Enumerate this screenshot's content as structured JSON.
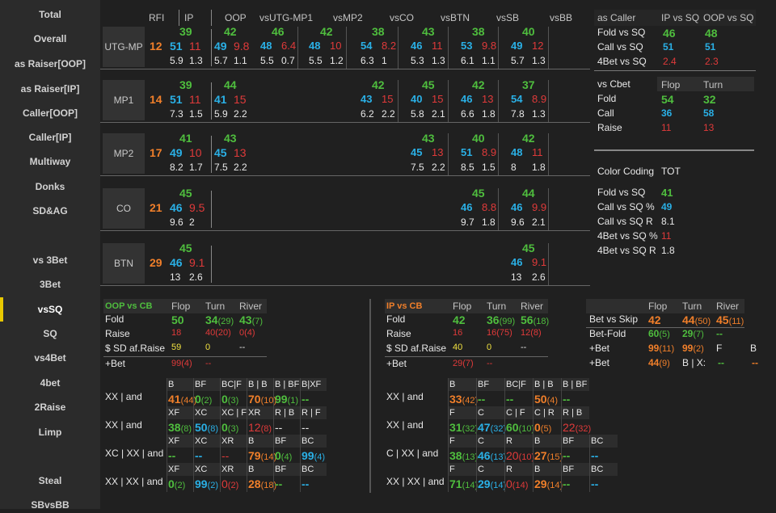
{
  "sidebar": {
    "items": [
      "Total",
      "Overall",
      "as Raiser[OOP]",
      "as Raiser[IP]",
      "Caller[OOP]",
      "Caller[IP]",
      "Multiway",
      "Donks",
      "SD&AG",
      "vs 3Bet",
      "3Bet",
      "vsSQ",
      "SQ",
      "vs4Bet",
      "4bet",
      "2Raise",
      "Limp",
      "Steal",
      "SBvsBB"
    ],
    "active": "vsSQ"
  },
  "grid": {
    "headers": [
      "RFI",
      "IP",
      "OOP",
      "vsUTG-MP1",
      "vsMP2",
      "vsCO",
      "vsBTN",
      "vsSB",
      "vsBB"
    ],
    "rows": [
      {
        "pos": "UTG-MP",
        "rfi": "12",
        "ip": {
          "f": "39",
          "c": "51",
          "b": "11",
          "s1": "5.9",
          "s2": "1.3"
        },
        "oop": {
          "f": "42",
          "c": "49",
          "b": "9.8",
          "s1": "5.7",
          "s2": "1.1"
        },
        "cells": [
          {
            "f": "46",
            "c": "48",
            "b": "6.4",
            "s1": "5.5",
            "s2": "0.7"
          },
          {
            "f": "42",
            "c": "48",
            "b": "10",
            "s1": "5.5",
            "s2": "1.2"
          },
          {
            "f": "38",
            "c": "54",
            "b": "8.2",
            "s1": "6.3",
            "s2": "1"
          },
          {
            "f": "43",
            "c": "46",
            "b": "11",
            "s1": "5.3",
            "s2": "1.3"
          },
          {
            "f": "38",
            "c": "53",
            "b": "9.8",
            "s1": "6.1",
            "s2": "1.1"
          },
          {
            "f": "40",
            "c": "49",
            "b": "12",
            "s1": "5.7",
            "s2": "1.3"
          }
        ]
      },
      {
        "pos": "MP1",
        "rfi": "14",
        "ip": {
          "f": "39",
          "c": "51",
          "b": "11",
          "s1": "7.3",
          "s2": "1.5"
        },
        "oop": {
          "f": "44",
          "c": "41",
          "b": "15",
          "s1": "5.9",
          "s2": "2.2"
        },
        "cells": [
          null,
          null,
          {
            "f": "42",
            "c": "43",
            "b": "15",
            "s1": "6.2",
            "s2": "2.2"
          },
          {
            "f": "45",
            "c": "40",
            "b": "15",
            "s1": "5.8",
            "s2": "2.1"
          },
          {
            "f": "42",
            "c": "46",
            "b": "13",
            "s1": "6.6",
            "s2": "1.8"
          },
          {
            "f": "37",
            "c": "54",
            "b": "8.9",
            "s1": "7.8",
            "s2": "1.3"
          }
        ]
      },
      {
        "pos": "MP2",
        "rfi": "17",
        "ip": {
          "f": "41",
          "c": "49",
          "b": "10",
          "s1": "8.2",
          "s2": "1.7"
        },
        "oop": {
          "f": "43",
          "c": "45",
          "b": "13",
          "s1": "7.5",
          "s2": "2.2"
        },
        "cells": [
          null,
          null,
          null,
          {
            "f": "43",
            "c": "45",
            "b": "13",
            "s1": "7.5",
            "s2": "2.2"
          },
          {
            "f": "40",
            "c": "51",
            "b": "8.9",
            "s1": "8.5",
            "s2": "1.5"
          },
          {
            "f": "42",
            "c": "48",
            "b": "11",
            "s1": "8",
            "s2": "1.8"
          }
        ]
      },
      {
        "pos": "CO",
        "rfi": "21",
        "ip": {
          "f": "45",
          "c": "46",
          "b": "9.5",
          "s1": "9.6",
          "s2": "2"
        },
        "oop": null,
        "cells": [
          null,
          null,
          null,
          null,
          {
            "f": "45",
            "c": "46",
            "b": "8.8",
            "s1": "9.7",
            "s2": "1.8"
          },
          {
            "f": "44",
            "c": "46",
            "b": "9.9",
            "s1": "9.6",
            "s2": "2.1"
          }
        ]
      },
      {
        "pos": "BTN",
        "rfi": "29",
        "ip": {
          "f": "45",
          "c": "46",
          "b": "9.1",
          "s1": "13",
          "s2": "2.6"
        },
        "oop": null,
        "cells": [
          null,
          null,
          null,
          null,
          null,
          {
            "f": "45",
            "c": "46",
            "b": "9.1",
            "s1": "13",
            "s2": "2.6"
          }
        ]
      }
    ]
  },
  "as_caller": {
    "title": "as Caller",
    "h1": "IP vs SQ",
    "h2": "OOP vs SQ",
    "rows": [
      {
        "label": "Fold vs SQ",
        "v1": "46",
        "v2": "48",
        "color": "g"
      },
      {
        "label": "Call vs SQ",
        "v1": "51",
        "v2": "51",
        "color": "b"
      },
      {
        "label": "4Bet vs SQ",
        "v1": "2.4",
        "v2": "2.3",
        "color": "r"
      }
    ]
  },
  "vs_cbet": {
    "title": "vs Cbet",
    "h1": "Flop",
    "h2": "Turn",
    "rows": [
      {
        "label": "Fold",
        "v1": "54",
        "v2": "32",
        "color": "g"
      },
      {
        "label": "Call",
        "v1": "36",
        "v2": "58",
        "color": "b"
      },
      {
        "label": "Raise",
        "v1": "11",
        "v2": "13",
        "color": "r"
      }
    ]
  },
  "color_coding": {
    "title": "Color Coding",
    "tot": "TOT",
    "rows": [
      {
        "label": "Fold vs SQ",
        "v": "41",
        "color": "g"
      },
      {
        "label": "Call vs SQ %",
        "v": "49",
        "color": "b"
      },
      {
        "label": "Call vs SQ R",
        "v": "8.1",
        "color": "w"
      },
      {
        "label": "4Bet vs SQ %",
        "v": "11",
        "color": "r"
      },
      {
        "label": "4Bet vs SQ R",
        "v": "1.8",
        "color": "w"
      }
    ]
  },
  "oop_cb": {
    "title": "OOP vs CB",
    "h": [
      "Flop",
      "Turn",
      "River"
    ],
    "fold": {
      "label": "Fold",
      "v": [
        "50",
        "34",
        "43"
      ],
      "n": [
        "",
        "(29)",
        "(7)"
      ]
    },
    "raise": {
      "label": "Raise",
      "v": [
        "18",
        "40",
        "0"
      ],
      "n": [
        "",
        "(20)",
        "(4)"
      ]
    },
    "sd": {
      "label": "$ SD af.Raise",
      "v": [
        "59",
        "0",
        "--"
      ]
    },
    "bet": {
      "label": "+Bet",
      "v": "99",
      "n": "(4)",
      "v2": "--"
    }
  },
  "ip_cb": {
    "title": "IP vs CB",
    "h": [
      "Flop",
      "Turn",
      "River"
    ],
    "fold": {
      "label": "Fold",
      "v": [
        "42",
        "36",
        "56"
      ],
      "n": [
        "",
        "(99)",
        "(18)"
      ]
    },
    "raise": {
      "label": "Raise",
      "v": [
        "16",
        "16",
        "12"
      ],
      "n": [
        "",
        "(75)",
        "(8)"
      ]
    },
    "sd": {
      "label": "$ SD af.Raise",
      "v": [
        "40",
        "0",
        "--"
      ]
    },
    "bet": {
      "label": "+Bet",
      "v": "29",
      "n": "(7)",
      "v2": "--"
    }
  },
  "bvs": {
    "h": [
      "Flop",
      "Turn",
      "River"
    ],
    "rows": [
      {
        "label": "Bet vs Skip",
        "v": [
          "42",
          "44",
          "45"
        ],
        "n": [
          "",
          "(50)",
          "(11)"
        ]
      },
      {
        "label": "Bet-Fold",
        "v": [
          "60",
          "29",
          "--"
        ],
        "n": [
          "(5)",
          "(7)",
          ""
        ]
      },
      {
        "label": "+Bet",
        "v": [
          "99",
          "99"
        ],
        "n": [
          "(11)",
          "(2)"
        ],
        "x": [
          "F",
          "B"
        ]
      },
      {
        "label": "+Bet",
        "v": [
          "44"
        ],
        "n": [
          "(9)"
        ],
        "x": [
          "B | X:",
          "--",
          "--"
        ]
      }
    ]
  },
  "oop_lines": {
    "rows": [
      {
        "label": "XX | and",
        "h": [
          "B",
          "BF",
          "BC|F",
          "B | B",
          "B | BF",
          "B|XF"
        ],
        "v": [
          "41",
          "0",
          "0",
          "70",
          "99",
          "--"
        ],
        "n": [
          "(44)",
          "(2)",
          "(3)",
          "(10)",
          "(1)",
          ""
        ],
        "c": [
          "o",
          "g",
          "g",
          "o",
          "g",
          "g"
        ]
      },
      {
        "label": "XX | and",
        "h": [
          "XF",
          "XC",
          "XC | F",
          "XR",
          "R | B",
          "R | F"
        ],
        "v": [
          "38",
          "50",
          "0",
          "12",
          "--",
          "--"
        ],
        "n": [
          "(8)",
          "(8)",
          "(3)",
          "(8)",
          "",
          ""
        ],
        "c": [
          "g",
          "b",
          "g",
          "r",
          "w",
          "w"
        ]
      },
      {
        "label": "XC | XX | and",
        "h": [
          "XF",
          "XC",
          "XR",
          "B",
          "BF",
          "BC"
        ],
        "v": [
          "--",
          "--",
          "--",
          "79",
          "0",
          "99"
        ],
        "n": [
          "",
          "",
          "",
          "(14)",
          "(4)",
          "(4)"
        ],
        "c": [
          "g",
          "b",
          "r",
          "o",
          "g",
          "b"
        ]
      },
      {
        "label": "XX | XX | and",
        "h": [
          "XF",
          "XC",
          "XR",
          "B",
          "BF",
          "BC"
        ],
        "v": [
          "0",
          "99",
          "0",
          "28",
          "--",
          "--"
        ],
        "n": [
          "(2)",
          "(2)",
          "(2)",
          "(18)",
          "",
          ""
        ],
        "c": [
          "g",
          "b",
          "r",
          "o",
          "g",
          "b"
        ]
      }
    ]
  },
  "ip_lines": {
    "rows": [
      {
        "label": "XX | and",
        "h": [
          "B",
          "BF",
          "BC|F",
          "B | B",
          "B | BF"
        ],
        "v": [
          "33",
          "--",
          "--",
          "50",
          "--"
        ],
        "n": [
          "(42)",
          "",
          "",
          "(4)",
          ""
        ],
        "c": [
          "o",
          "g",
          "g",
          "o",
          "g"
        ]
      },
      {
        "label": "XX | and",
        "h": [
          "F",
          "C",
          "C | F",
          "C | R",
          "R | B"
        ],
        "v": [
          "31",
          "47",
          "60",
          "0",
          "22"
        ],
        "n": [
          "(32)",
          "(32)",
          "(10)",
          "(5)",
          "(32)"
        ],
        "c": [
          "g",
          "b",
          "g",
          "o",
          "r"
        ]
      },
      {
        "label": "C | XX | and",
        "h": [
          "F",
          "C",
          "R",
          "B",
          "BF",
          "BC"
        ],
        "v": [
          "38",
          "46",
          "20",
          "27",
          "--",
          "--"
        ],
        "n": [
          "(13)",
          "(13)",
          "(10)",
          "(15)",
          "",
          ""
        ],
        "c": [
          "g",
          "b",
          "r",
          "o",
          "g",
          "b"
        ]
      },
      {
        "label": "XX | XX | and",
        "h": [
          "F",
          "C",
          "R",
          "B",
          "BF",
          "BC"
        ],
        "v": [
          "71",
          "29",
          "0",
          "29",
          "--",
          "--"
        ],
        "n": [
          "(14)",
          "(14)",
          "(14)",
          "(14)",
          "",
          ""
        ],
        "c": [
          "g",
          "b",
          "r",
          "o",
          "g",
          "b"
        ]
      }
    ]
  }
}
